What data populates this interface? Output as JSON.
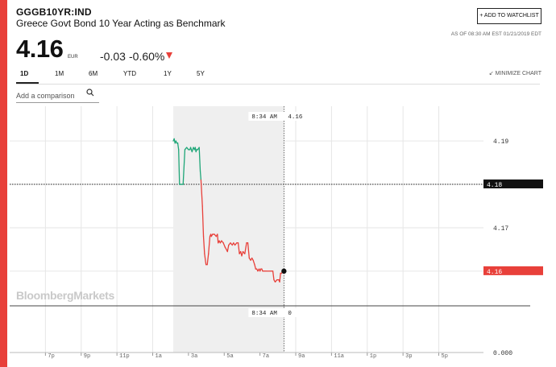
{
  "header": {
    "ticker": "GGGB10YR:IND",
    "name": "Greece Govt Bond 10 Year Acting as Benchmark",
    "add_watchlist": "+ ADD TO WATCHLIST",
    "as_of": "AS OF 08:30 AM EST 01/21/2019 EDT",
    "price": "4.16",
    "currency": "EUR",
    "change": "-0.03",
    "change_pct": "-0.60%"
  },
  "tabs": [
    {
      "label": "1D",
      "active": true
    },
    {
      "label": "1M",
      "active": false
    },
    {
      "label": "6M",
      "active": false
    },
    {
      "label": "YTD",
      "active": false
    },
    {
      "label": "1Y",
      "active": false
    },
    {
      "label": "5Y",
      "active": false
    }
  ],
  "minimize_label": "MINIMIZE CHART",
  "compare_placeholder": "Add a comparison",
  "watermark": "BloombergMarkets",
  "colors": {
    "up": "#1fa678",
    "down": "#e8403a",
    "accent": "#e8403a",
    "volume_area": "#efefef"
  },
  "chart_data": {
    "type": "line",
    "xlabels": [
      "7p",
      "9p",
      "11p",
      "1a",
      "3a",
      "5a",
      "7a",
      "9a",
      "11a",
      "1p",
      "3p",
      "5p"
    ],
    "x_hours": [
      -5,
      -3,
      -1,
      1,
      3,
      5,
      7,
      9,
      11,
      13,
      15,
      17
    ],
    "ylim": [
      4.152,
      4.198
    ],
    "yticks": [
      4.19,
      4.18,
      4.17,
      4.16
    ],
    "prev_close": 4.18,
    "prev_close_label": "4.18",
    "last_label": "4.16",
    "crosshair_time": "8:34 AM",
    "crosshair_value": "4.16",
    "volume_time": "8:34 AM",
    "volume_value": "0",
    "volume_axis_label": "0.000",
    "series": [
      {
        "x": [
          2.15,
          2.2,
          2.25,
          2.3,
          2.35,
          2.4,
          2.45,
          2.5,
          2.55,
          2.6,
          2.7,
          2.8,
          2.9,
          3.0,
          3.08,
          3.12,
          3.2,
          3.28,
          3.34,
          3.38,
          3.42,
          3.46,
          3.52,
          3.6,
          3.66,
          3.7,
          3.78,
          3.84,
          3.9,
          3.98,
          4.05,
          4.12,
          4.2,
          4.25,
          4.28,
          4.35,
          4.45,
          4.55,
          4.62,
          4.66,
          4.72,
          4.78,
          4.85,
          4.95,
          5.05,
          5.12,
          5.18,
          5.25,
          5.35,
          5.45,
          5.52,
          5.6,
          5.7,
          5.78,
          5.85,
          5.92,
          5.98,
          6.05,
          6.15,
          6.25,
          6.32,
          6.4,
          6.48,
          6.55,
          6.62,
          6.7,
          6.76,
          6.82,
          6.88,
          6.95,
          7.0,
          7.05,
          7.1,
          7.15,
          7.2,
          7.25,
          7.3,
          7.35,
          7.45,
          7.55,
          7.62,
          7.66,
          7.72,
          7.78,
          7.85,
          7.95,
          8.05,
          8.1,
          8.15,
          8.2,
          8.28,
          8.34
        ],
        "y": [
          4.19,
          4.1905,
          4.1895,
          4.19,
          4.1895,
          4.1895,
          4.188,
          4.18,
          4.18,
          4.18,
          4.18,
          4.188,
          4.1885,
          4.188,
          4.188,
          4.1885,
          4.1875,
          4.1885,
          4.188,
          4.1885,
          4.1875,
          4.188,
          4.188,
          4.1885,
          4.183,
          4.181,
          4.175,
          4.168,
          4.164,
          4.1615,
          4.1615,
          4.164,
          4.168,
          4.1685,
          4.168,
          4.1685,
          4.1685,
          4.168,
          4.1685,
          4.1665,
          4.167,
          4.1665,
          4.167,
          4.1665,
          4.1655,
          4.165,
          4.1645,
          4.166,
          4.1665,
          4.166,
          4.1665,
          4.166,
          4.1665,
          4.1665,
          4.164,
          4.1645,
          4.1635,
          4.1645,
          4.164,
          4.1665,
          4.1665,
          4.163,
          4.1625,
          4.163,
          4.1625,
          4.1615,
          4.1605,
          4.1605,
          4.16,
          4.1605,
          4.16,
          4.1605,
          4.1605,
          4.16,
          4.16,
          4.16,
          4.16,
          4.16,
          4.16,
          4.16,
          4.16,
          4.16,
          4.16,
          4.158,
          4.1575,
          4.158,
          4.158,
          4.1575,
          4.1595,
          4.1595,
          4.16,
          4.16
        ]
      }
    ]
  }
}
